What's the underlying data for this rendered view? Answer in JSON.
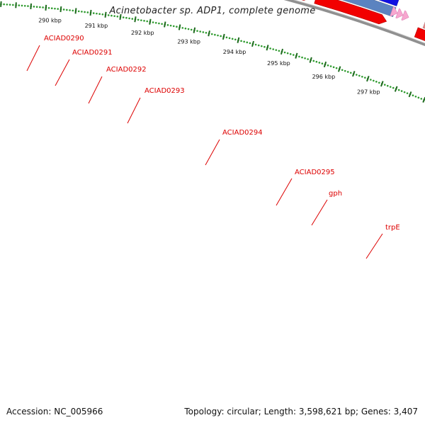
{
  "title": "Acinetobacter sp. ADP1, complete genome",
  "accession_text": "Accession: NC_005966",
  "stats_text": "Topology: circular; Length: 3,598,621 bp; Genes: 3,407",
  "colors": {
    "backbone": "#909090",
    "tick_dark": "#1f6b1f",
    "tick_light": "#2e9a2e",
    "label_red": "#dd0000",
    "red_cds": "#f20000",
    "gray_cds": "#cfcfcf",
    "olive_cds": "#b9b57a",
    "lime_cds": "#a6f03a",
    "green_cds": "#3fca3f",
    "blue_cds": "#1010e0",
    "steel_cds": "#5b83c0",
    "pink_cds": "#f7a6cf"
  },
  "kbp_ticks": [
    {
      "label": "290 kbp"
    },
    {
      "label": "291 kbp"
    },
    {
      "label": "292 kbp"
    },
    {
      "label": "293 kbp"
    },
    {
      "label": "294 kbp"
    },
    {
      "label": "295 kbp"
    },
    {
      "label": "296 kbp"
    },
    {
      "label": "297 kbp"
    }
  ],
  "gene_labels": [
    {
      "text": "ACIAD0290"
    },
    {
      "text": "ACIAD0291"
    },
    {
      "text": "ACIAD0292"
    },
    {
      "text": "ACIAD0293"
    },
    {
      "text": "ACIAD0294"
    },
    {
      "text": "ACIAD0295"
    },
    {
      "text": "gph"
    },
    {
      "text": "trpE"
    }
  ]
}
